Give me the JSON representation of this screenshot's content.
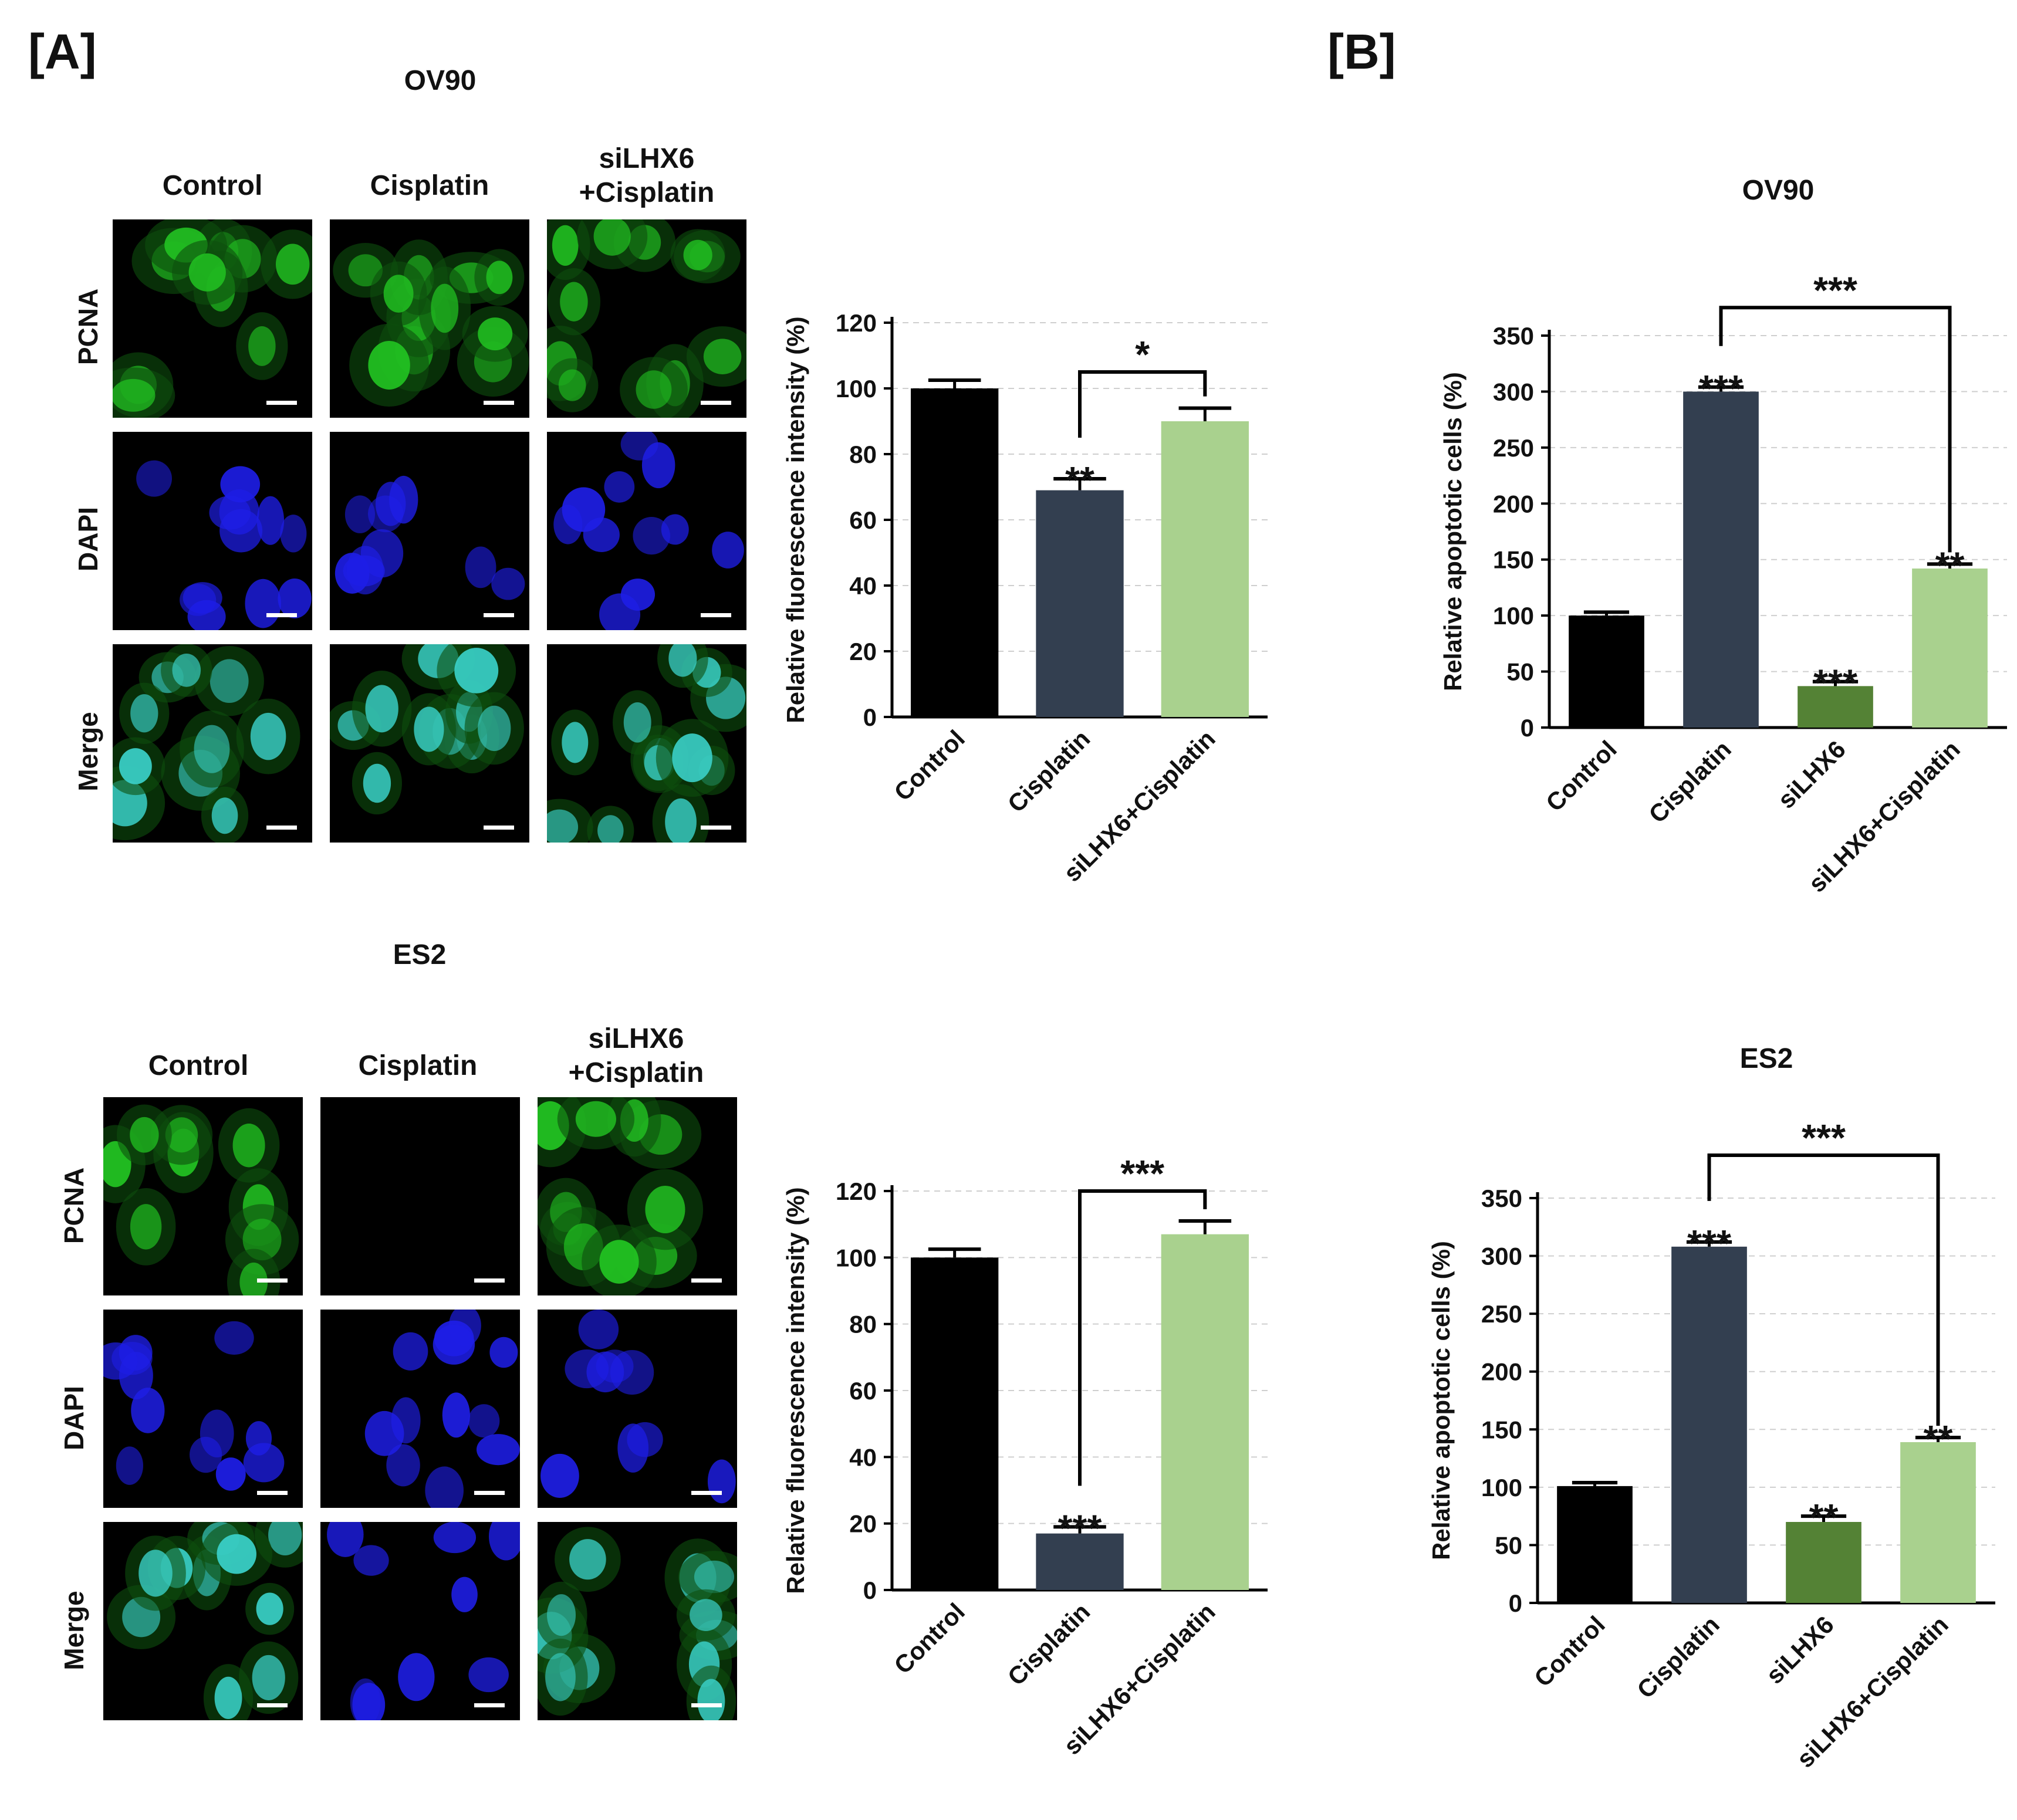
{
  "panels": {
    "a": {
      "letter": "[A]",
      "blocks": [
        {
          "cell_line": "OV90",
          "columns": [
            "Control",
            "Cisplatin",
            "siLHX6\n+Cisplatin"
          ],
          "rows": [
            "PCNA",
            "DAPI",
            "Merge"
          ]
        },
        {
          "cell_line": "ES2",
          "columns": [
            "Control",
            "Cisplatin",
            "siLHX6\n+Cisplatin"
          ],
          "rows": [
            "PCNA",
            "DAPI",
            "Merge"
          ]
        }
      ]
    },
    "b": {
      "letter": "[B]"
    }
  },
  "colors": {
    "control": "#000000",
    "cisplatin": "#333f50",
    "silhx6": "#548235",
    "silhx6_cisplatin": "#a9d18e",
    "pcna_green": "#22c222",
    "dapi_blue": "#1e1ee6",
    "merge_cyan": "#3ad0c8"
  },
  "chart_data": [
    {
      "type": "bar",
      "title": "",
      "ylabel": "Relative fluorescence intensity (%)",
      "categories": [
        "Control",
        "Cisplatin",
        "siLHX6+Cisplatin"
      ],
      "values": [
        100,
        69,
        90
      ],
      "errors": [
        2.5,
        3.5,
        4
      ],
      "ylim": [
        0,
        120
      ],
      "yticks": [
        0,
        20,
        40,
        60,
        80,
        100,
        120
      ],
      "bar_labels": [
        "",
        "**",
        ""
      ],
      "brackets": [
        {
          "from": 1,
          "to": 2,
          "label": "*"
        }
      ],
      "grid": "dashed horizontal"
    },
    {
      "type": "bar",
      "title": "OV90",
      "ylabel": "Relative apoptotic cells (%)",
      "categories": [
        "Control",
        "Cisplatin",
        "siLHX6",
        "siLHX6+Cisplatin"
      ],
      "values": [
        100,
        300,
        37,
        142
      ],
      "errors": [
        3,
        4,
        4,
        4
      ],
      "ylim": [
        0,
        350
      ],
      "yticks": [
        0,
        50,
        100,
        150,
        200,
        250,
        300,
        350
      ],
      "bar_labels": [
        "",
        "***",
        "***",
        "**"
      ],
      "brackets": [
        {
          "from": 1,
          "to": 3,
          "label": "***"
        }
      ],
      "grid": "dashed horizontal"
    },
    {
      "type": "bar",
      "title": "",
      "ylabel": "Relative fluorescence intensity (%)",
      "categories": [
        "Control",
        "Cisplatin",
        "siLHX6+Cisplatin"
      ],
      "values": [
        100,
        17,
        107
      ],
      "errors": [
        2.5,
        2,
        4
      ],
      "ylim": [
        0,
        120
      ],
      "yticks": [
        0,
        20,
        40,
        60,
        80,
        100,
        120
      ],
      "bar_labels": [
        "",
        "***",
        ""
      ],
      "brackets": [
        {
          "from": 1,
          "to": 2,
          "label": "***"
        }
      ],
      "grid": "dashed horizontal"
    },
    {
      "type": "bar",
      "title": "ES2",
      "ylabel": "Relative apoptotic cells (%)",
      "categories": [
        "Control",
        "Cisplatin",
        "siLHX6",
        "siLHX6+Cisplatin"
      ],
      "values": [
        101,
        308,
        70,
        139
      ],
      "errors": [
        3,
        4,
        5,
        4
      ],
      "ylim": [
        0,
        350
      ],
      "yticks": [
        0,
        50,
        100,
        150,
        200,
        250,
        300,
        350
      ],
      "bar_labels": [
        "",
        "***",
        "**",
        "**"
      ],
      "brackets": [
        {
          "from": 1,
          "to": 3,
          "label": "***"
        }
      ],
      "grid": "dashed horizontal"
    }
  ]
}
